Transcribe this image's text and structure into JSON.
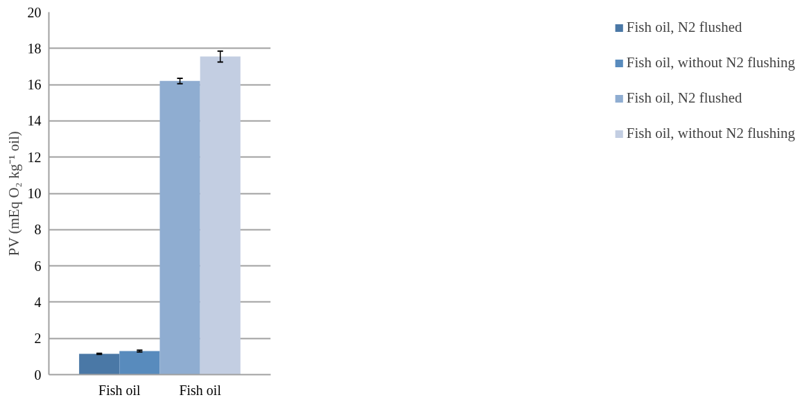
{
  "chart_data": {
    "type": "bar",
    "ylabel": "PV (mEq O₂ kg⁻¹ oil)",
    "categories": [
      "Fish oil",
      "Fish oil"
    ],
    "series": [
      {
        "name": "Fish oil, N2 flushed",
        "color": "#4a78a6",
        "values": [
          1.15,
          null
        ],
        "errors": [
          0.03,
          null
        ]
      },
      {
        "name": "Fish oil, without N2 flushing",
        "color": "#588bbd",
        "values": [
          1.3,
          null
        ],
        "errors": [
          0.05,
          null
        ]
      },
      {
        "name": "Fish oil, N2 flushed",
        "color": "#8fadd1",
        "values": [
          null,
          16.2
        ],
        "errors": [
          null,
          0.15
        ]
      },
      {
        "name": "Fish oil, without N2 flushing",
        "color": "#c3cee2",
        "values": [
          null,
          17.55
        ],
        "errors": [
          null,
          0.3
        ]
      }
    ],
    "ylim": [
      0,
      20
    ],
    "yticks": [
      0,
      2,
      4,
      6,
      8,
      10,
      12,
      14,
      16,
      18,
      20
    ],
    "grid": "y",
    "legend": "right"
  }
}
